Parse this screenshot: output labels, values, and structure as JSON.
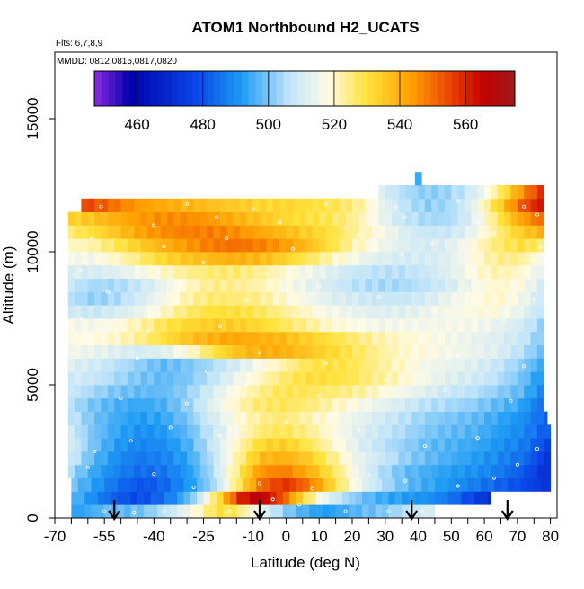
{
  "chart_data": {
    "type": "heatmap",
    "title": "ATOM1 Northbound H2_UCATS",
    "subtitle_flights": "Flts: 6,7,8,9",
    "subtitle_dates": "MMDD: 0812,0815,0817,0820",
    "xlabel": "Latitude (deg N)",
    "ylabel": "Altitude (m)",
    "xlim": [
      -70,
      82
    ],
    "ylim": [
      0,
      17500
    ],
    "x_ticks": [
      -70,
      -55,
      -40,
      -25,
      -10,
      0,
      10,
      20,
      30,
      40,
      50,
      60,
      70,
      80
    ],
    "x_tick_labels": [
      "-70",
      "-55",
      "-40",
      "-25",
      "-10",
      "0",
      "10",
      "20",
      "30",
      "40",
      "50",
      "60",
      "70",
      "80"
    ],
    "x_minor_ticks": [
      -65,
      -60,
      -50,
      -45,
      -35,
      -30,
      -20,
      -15,
      -5,
      5,
      15,
      25,
      35,
      45,
      55,
      65,
      75
    ],
    "y_ticks": [
      0,
      5000,
      10000,
      15000
    ],
    "y_tick_labels": [
      "0",
      "5000",
      "10000",
      "15000"
    ],
    "colorbar": {
      "range": [
        447,
        575
      ],
      "ticks": [
        460,
        480,
        500,
        520,
        540,
        560
      ],
      "tick_labels": [
        "460",
        "480",
        "500",
        "520",
        "540",
        "560"
      ],
      "stops": [
        {
          "v": 447,
          "c": "#8a2be2"
        },
        {
          "v": 458,
          "c": "#0000aa"
        },
        {
          "v": 478,
          "c": "#0a46e8"
        },
        {
          "v": 492,
          "c": "#1e9cf4"
        },
        {
          "v": 506,
          "c": "#bfe4fa"
        },
        {
          "v": 518,
          "c": "#fffbe6"
        },
        {
          "v": 530,
          "c": "#ffe23a"
        },
        {
          "v": 544,
          "c": "#ff9c00"
        },
        {
          "v": 558,
          "c": "#e43000"
        },
        {
          "v": 566,
          "c": "#c00000"
        },
        {
          "v": 575,
          "c": "#9a1c1c"
        }
      ]
    },
    "grid": false,
    "legend": "top-inside colorbar",
    "rows": [
      {
        "y0": 0,
        "y1": 500,
        "xs": -65,
        "xe": 45,
        "v": [
          492,
          495,
          498,
          498,
          500,
          505,
          512,
          520,
          530,
          528,
          518,
          508,
          500,
          495,
          492,
          495,
          498,
          500,
          504,
          508,
          512
        ]
      },
      {
        "y0": 500,
        "y1": 1000,
        "xs": -65,
        "xe": 62,
        "v": [
          498,
          490,
          482,
          478,
          482,
          490,
          505,
          530,
          560,
          568,
          555,
          532,
          515,
          505,
          498,
          494,
          492,
          490,
          486,
          478,
          470
        ]
      },
      {
        "y0": 1000,
        "y1": 1500,
        "xs": -65,
        "xe": 80,
        "v": [
          500,
          492,
          484,
          480,
          484,
          492,
          505,
          528,
          552,
          558,
          548,
          530,
          515,
          505,
          498,
          494,
          490,
          486,
          482,
          478,
          472
        ]
      },
      {
        "y0": 1500,
        "y1": 2000,
        "xs": -66,
        "xe": 80,
        "v": [
          505,
          495,
          488,
          484,
          486,
          492,
          505,
          525,
          545,
          548,
          540,
          528,
          515,
          505,
          498,
          495,
          492,
          490,
          486,
          480,
          470
        ]
      },
      {
        "y0": 2000,
        "y1": 2500,
        "xs": -66,
        "xe": 80,
        "v": [
          510,
          498,
          490,
          486,
          488,
          494,
          506,
          522,
          538,
          540,
          534,
          524,
          514,
          508,
          502,
          498,
          495,
          492,
          488,
          484,
          472
        ]
      },
      {
        "y0": 2500,
        "y1": 3000,
        "xs": -66,
        "xe": 80,
        "v": [
          512,
          500,
          492,
          488,
          490,
          496,
          508,
          520,
          532,
          534,
          528,
          520,
          512,
          506,
          502,
          498,
          496,
          494,
          490,
          486,
          476
        ]
      },
      {
        "y0": 3000,
        "y1": 3500,
        "xs": -66,
        "xe": 80,
        "v": [
          510,
          500,
          494,
          490,
          492,
          498,
          508,
          518,
          526,
          528,
          524,
          518,
          512,
          508,
          504,
          500,
          498,
          496,
          492,
          488,
          480
        ]
      },
      {
        "y0": 3500,
        "y1": 4000,
        "xs": -66,
        "xe": 79,
        "v": [
          508,
          500,
          495,
          492,
          494,
          500,
          510,
          518,
          524,
          526,
          522,
          518,
          514,
          510,
          506,
          502,
          500,
          498,
          494,
          490,
          482
        ]
      },
      {
        "y0": 4000,
        "y1": 4500,
        "xs": -66,
        "xe": 78,
        "v": [
          506,
          500,
          496,
          494,
          496,
          502,
          512,
          520,
          526,
          528,
          526,
          522,
          518,
          514,
          510,
          506,
          504,
          502,
          498,
          494,
          484
        ]
      },
      {
        "y0": 4500,
        "y1": 5000,
        "xs": -66,
        "xe": 78,
        "v": [
          508,
          504,
          500,
          498,
          498,
          502,
          510,
          518,
          524,
          528,
          528,
          526,
          524,
          520,
          516,
          512,
          508,
          506,
          502,
          498,
          488
        ]
      },
      {
        "y0": 5000,
        "y1": 5500,
        "xs": -66,
        "xe": 78,
        "v": [
          510,
          508,
          504,
          500,
          498,
          500,
          506,
          514,
          520,
          526,
          530,
          530,
          528,
          524,
          520,
          516,
          512,
          510,
          506,
          500,
          490
        ]
      },
      {
        "y0": 5500,
        "y1": 6000,
        "xs": -66,
        "xe": 78,
        "v": [
          512,
          510,
          506,
          502,
          498,
          500,
          504,
          510,
          516,
          522,
          528,
          530,
          528,
          524,
          520,
          516,
          514,
          512,
          508,
          502,
          494
        ]
      },
      {
        "y0": 6000,
        "y1": 6500,
        "xs": -66,
        "xe": 78,
        "v": [
          516,
          514,
          512,
          510,
          512,
          518,
          528,
          536,
          540,
          540,
          536,
          532,
          528,
          524,
          520,
          518,
          516,
          514,
          512,
          506,
          498
        ]
      },
      {
        "y0": 6500,
        "y1": 7000,
        "xs": -66,
        "xe": 78,
        "v": [
          518,
          518,
          520,
          524,
          530,
          536,
          540,
          542,
          540,
          538,
          534,
          530,
          526,
          522,
          520,
          518,
          516,
          514,
          512,
          508,
          500
        ]
      },
      {
        "y0": 7000,
        "y1": 7500,
        "xs": -66,
        "xe": 78,
        "v": [
          516,
          516,
          518,
          522,
          528,
          532,
          534,
          534,
          532,
          528,
          524,
          520,
          518,
          516,
          516,
          516,
          516,
          516,
          514,
          510,
          502
        ]
      },
      {
        "y0": 7500,
        "y1": 8000,
        "xs": -66,
        "xe": 78,
        "v": [
          510,
          508,
          510,
          514,
          520,
          526,
          530,
          530,
          528,
          524,
          520,
          516,
          514,
          512,
          512,
          514,
          516,
          518,
          518,
          514,
          506
        ]
      },
      {
        "y0": 8000,
        "y1": 8500,
        "xs": -66,
        "xe": 78,
        "v": [
          506,
          502,
          504,
          510,
          516,
          522,
          526,
          526,
          524,
          520,
          516,
          512,
          510,
          508,
          508,
          510,
          514,
          518,
          520,
          516,
          508
        ]
      },
      {
        "y0": 8500,
        "y1": 9000,
        "xs": -66,
        "xe": 78,
        "v": [
          508,
          504,
          504,
          508,
          514,
          520,
          524,
          524,
          522,
          518,
          514,
          510,
          506,
          504,
          504,
          506,
          510,
          516,
          520,
          518,
          510
        ]
      },
      {
        "y0": 9000,
        "y1": 9500,
        "xs": -66,
        "xe": 78,
        "v": [
          512,
          510,
          512,
          516,
          520,
          524,
          526,
          526,
          524,
          520,
          516,
          512,
          508,
          506,
          506,
          508,
          512,
          518,
          522,
          520,
          512
        ]
      },
      {
        "y0": 9500,
        "y1": 10000,
        "xs": -66,
        "xe": 78,
        "v": [
          516,
          516,
          520,
          526,
          532,
          536,
          538,
          540,
          538,
          534,
          528,
          522,
          516,
          512,
          510,
          510,
          512,
          518,
          524,
          524,
          516
        ]
      },
      {
        "y0": 10000,
        "y1": 10500,
        "xs": -66,
        "xe": 78,
        "v": [
          520,
          522,
          528,
          534,
          540,
          544,
          548,
          550,
          548,
          544,
          538,
          530,
          522,
          516,
          512,
          510,
          512,
          518,
          526,
          530,
          526
        ]
      },
      {
        "y0": 10500,
        "y1": 11000,
        "xs": -66,
        "xe": 78,
        "v": [
          526,
          530,
          536,
          542,
          546,
          548,
          548,
          546,
          542,
          538,
          534,
          530,
          524,
          518,
          512,
          508,
          508,
          514,
          524,
          534,
          540
        ]
      },
      {
        "y0": 11000,
        "y1": 11500,
        "xs": -66,
        "xe": 78,
        "v": [
          532,
          536,
          540,
          544,
          546,
          546,
          544,
          540,
          536,
          532,
          530,
          528,
          524,
          516,
          508,
          504,
          504,
          512,
          526,
          542,
          552
        ]
      },
      {
        "y0": 11500,
        "y1": 12000,
        "xs": -62,
        "xe": 78,
        "v": [
          556,
          552,
          546,
          542,
          540,
          538,
          536,
          534,
          532,
          532,
          530,
          528,
          524,
          514,
          506,
          502,
          504,
          514,
          532,
          552,
          564
        ]
      },
      {
        "y0": 12000,
        "y1": 12500,
        "xs": 28,
        "xe": 78,
        "v": [
          512,
          506,
          502,
          502,
          506,
          514,
          528,
          546,
          560
        ]
      },
      {
        "y0": 12500,
        "y1": 13000,
        "xs": 39,
        "xe": 41,
        "v": [
          496
        ]
      }
    ],
    "sample_points": [
      [
        -55,
        250
      ],
      [
        -46,
        200
      ],
      [
        -37,
        250
      ],
      [
        -26,
        200
      ],
      [
        -17,
        250
      ],
      [
        -4,
        700
      ],
      [
        4,
        500
      ],
      [
        18,
        250
      ],
      [
        31,
        250
      ],
      [
        41,
        250
      ],
      [
        49,
        250
      ],
      [
        -60,
        1900
      ],
      [
        -40,
        1650
      ],
      [
        -28,
        1150
      ],
      [
        -8,
        1300
      ],
      [
        8,
        1100
      ],
      [
        25,
        1600
      ],
      [
        36,
        1400
      ],
      [
        52,
        1200
      ],
      [
        63,
        1500
      ],
      [
        70,
        2000
      ],
      [
        -58,
        2500
      ],
      [
        -47,
        2900
      ],
      [
        -35,
        3400
      ],
      [
        -20,
        3100
      ],
      [
        0,
        3600
      ],
      [
        22,
        3300
      ],
      [
        42,
        2700
      ],
      [
        58,
        3000
      ],
      [
        76,
        2600
      ],
      [
        -50,
        4500
      ],
      [
        -30,
        4300
      ],
      [
        -12,
        5000
      ],
      [
        10,
        4600
      ],
      [
        30,
        5200
      ],
      [
        48,
        4800
      ],
      [
        68,
        4400
      ],
      [
        -45,
        6000
      ],
      [
        -24,
        5500
      ],
      [
        -8,
        6200
      ],
      [
        12,
        5800
      ],
      [
        32,
        6400
      ],
      [
        52,
        6100
      ],
      [
        72,
        5700
      ],
      [
        -62,
        7500
      ],
      [
        -42,
        7000
      ],
      [
        -20,
        7200
      ],
      [
        2,
        7600
      ],
      [
        22,
        7100
      ],
      [
        45,
        7800
      ],
      [
        66,
        7400
      ],
      [
        -54,
        8500
      ],
      [
        -32,
        8900
      ],
      [
        -12,
        8200
      ],
      [
        10,
        8700
      ],
      [
        28,
        8300
      ],
      [
        55,
        8600
      ],
      [
        75,
        8200
      ],
      [
        -62,
        9300
      ],
      [
        -45,
        9800
      ],
      [
        -25,
        9600
      ],
      [
        -6,
        9200
      ],
      [
        15,
        9500
      ],
      [
        35,
        9900
      ],
      [
        57,
        9300
      ],
      [
        74,
        9700
      ],
      [
        -59,
        10500
      ],
      [
        -37,
        10200
      ],
      [
        -18,
        10500
      ],
      [
        2,
        10100
      ],
      [
        22,
        10600
      ],
      [
        44,
        10300
      ],
      [
        63,
        10700
      ],
      [
        77,
        10200
      ],
      [
        -40,
        11000
      ],
      [
        -21,
        11300
      ],
      [
        -2,
        11100
      ],
      [
        18,
        10900
      ],
      [
        36,
        11300
      ],
      [
        58,
        11100
      ],
      [
        76,
        11400
      ],
      [
        -56,
        11700
      ],
      [
        -30,
        11800
      ],
      [
        -10,
        11600
      ],
      [
        12,
        11800
      ],
      [
        33,
        11700
      ],
      [
        52,
        11900
      ],
      [
        72,
        11700
      ]
    ],
    "arrow_markers_latitude": [
      -52,
      -8,
      38,
      67
    ]
  }
}
